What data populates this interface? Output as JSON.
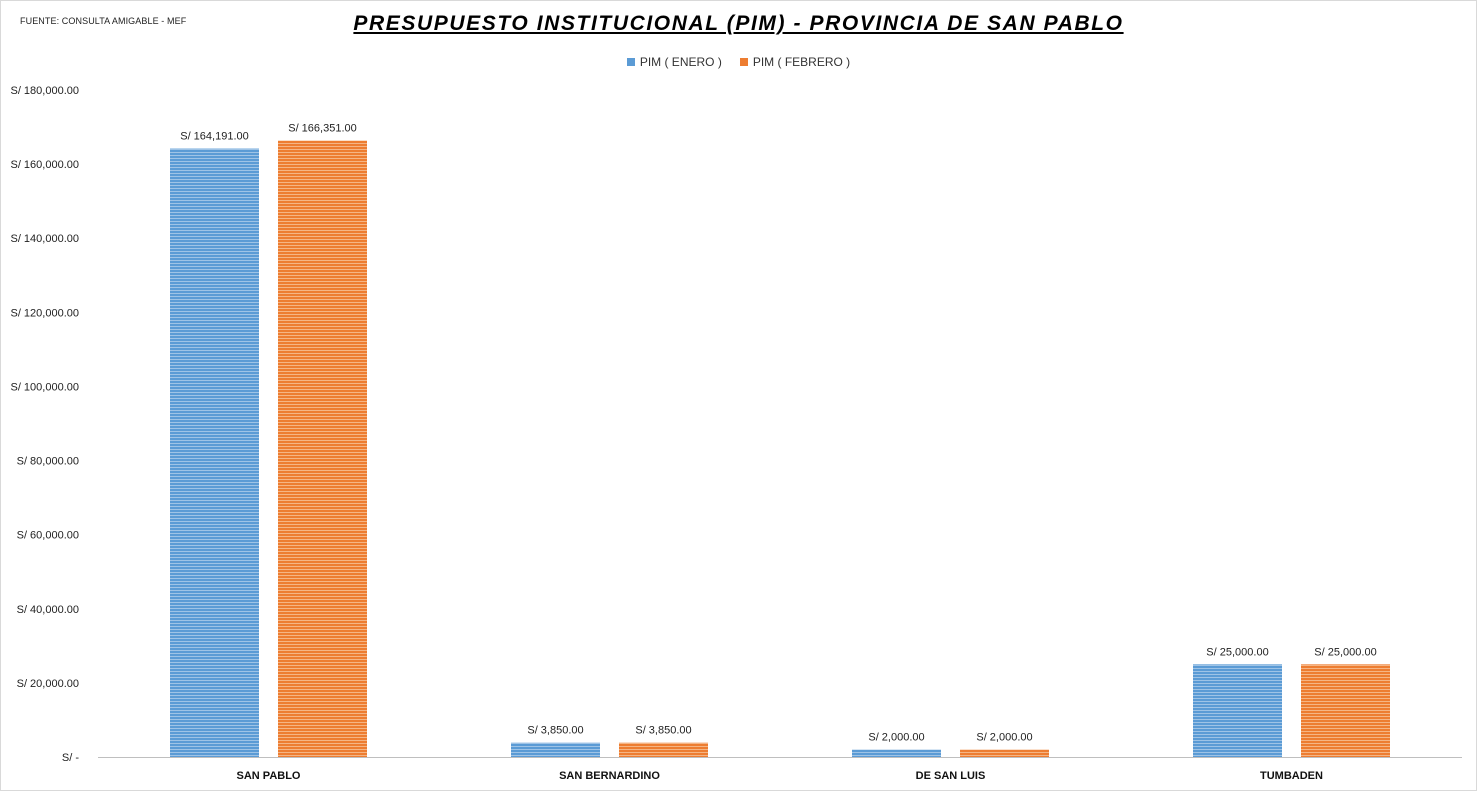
{
  "source_note": "FUENTE: CONSULTA AMIGABLE - MEF",
  "chart_data": {
    "type": "bar",
    "title": "PRESUPUESTO INSTITUCIONAL (PIM) - PROVINCIA DE SAN PABLO",
    "xlabel": "",
    "ylabel": "",
    "categories": [
      "SAN PABLO",
      "SAN BERNARDINO",
      "DE SAN LUIS",
      "TUMBADEN"
    ],
    "series": [
      {
        "name": "PIM ( ENERO )",
        "color": "#5b9bd5",
        "values": [
          164191,
          3850,
          2000,
          25000
        ],
        "labels": [
          "S/ 164,191.00",
          "S/ 3,850.00",
          "S/ 2,000.00",
          "S/ 25,000.00"
        ]
      },
      {
        "name": "PIM ( FEBRERO )",
        "color": "#ed7d31",
        "values": [
          166351,
          3850,
          2000,
          25000
        ],
        "labels": [
          "S/ 166,351.00",
          "S/ 3,850.00",
          "S/ 2,000.00",
          "S/ 25,000.00"
        ]
      }
    ],
    "ylim": [
      0,
      180000
    ],
    "yticks": [
      0,
      20000,
      40000,
      60000,
      80000,
      100000,
      120000,
      140000,
      160000,
      180000
    ],
    "ytick_labels": [
      "S/ -",
      "S/ 20,000.00",
      "S/ 40,000.00",
      "S/ 60,000.00",
      "S/ 80,000.00",
      "S/ 100,000.00",
      "S/ 120,000.00",
      "S/ 140,000.00",
      "S/ 160,000.00",
      "S/ 180,000.00"
    ],
    "grid": false,
    "legend_position": "top"
  }
}
